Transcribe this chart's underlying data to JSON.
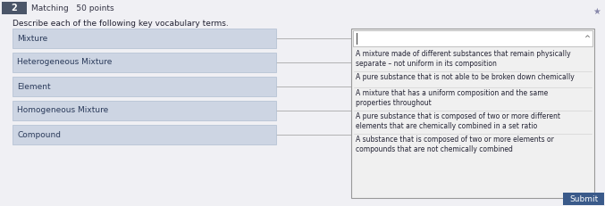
{
  "overall_bg": "#d0d4dc",
  "header_num_bg": "#4a5568",
  "header_num": "2",
  "header_text": "Matching   50 points",
  "header_text_color": "#333344",
  "instruction": "Describe each of the following key vocabulary terms.",
  "instruction_color": "#222233",
  "left_terms": [
    "Mixture",
    "Heterogeneous Mixture",
    "Element",
    "Homogeneous Mixture",
    "Compound"
  ],
  "left_box_color": "#cdd5e3",
  "left_box_edge": "#b0bdd0",
  "left_text_color": "#2a3a5a",
  "connector_color": "#999999",
  "right_panel_bg": "#f0f0f0",
  "right_panel_edge": "#999999",
  "right_input_bg": "#ffffff",
  "right_input_edge": "#aaaaaa",
  "right_text_color": "#222233",
  "right_definitions": [
    "A mixture made of different substances that remain physically\nseparate – not uniform in its composition",
    "A pure substance that is not able to be broken down chemically",
    "A mixture that has a uniform composition and the same\nproperties throughout",
    "A pure substance that is composed of two or more different\nelements that are chemically combined in a set ratio",
    "A substance that is composed of two or more elements or\ncompounds that are not chemically combined"
  ],
  "submit_bg": "#3a5a8a",
  "submit_text": "Submit",
  "content_bg": "#f0f0f4"
}
